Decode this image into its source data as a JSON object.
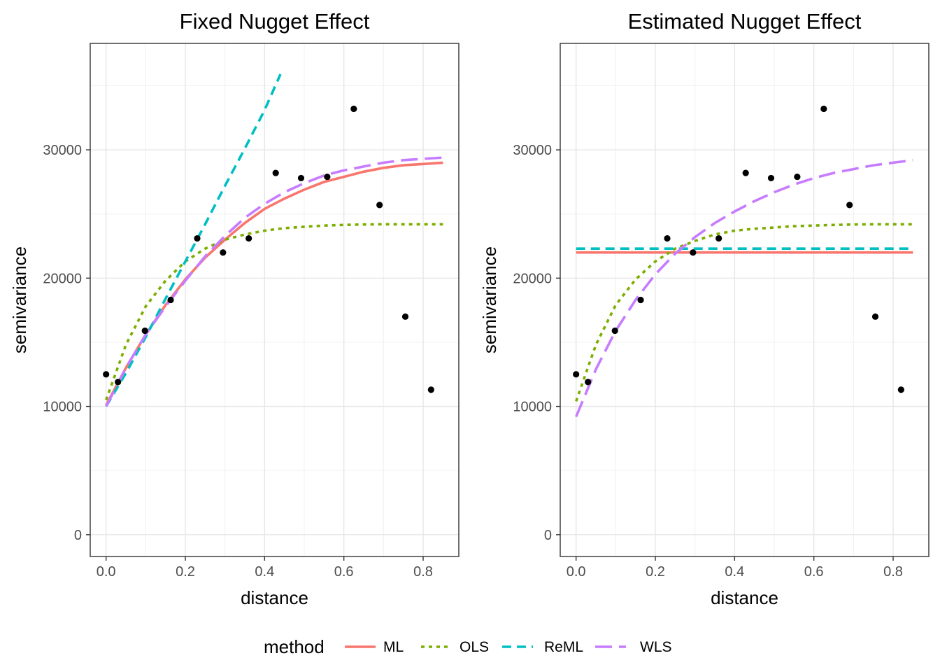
{
  "chart_data": [
    {
      "type": "line",
      "title": "Fixed Nugget Effect",
      "xlabel": "distance",
      "ylabel": "semivariance",
      "xlim": [
        -0.04,
        0.89
      ],
      "ylim": [
        -1700,
        38300
      ],
      "xticks": [
        0.0,
        0.2,
        0.4,
        0.6,
        0.8
      ],
      "xtick_labels": [
        "0.0",
        "0.2",
        "0.4",
        "0.6",
        "0.8"
      ],
      "yticks": [
        0,
        10000,
        20000,
        30000
      ],
      "ytick_labels": [
        "0",
        "10000",
        "20000",
        "30000"
      ],
      "grid": true,
      "points": {
        "x": [
          0.0,
          0.03,
          0.098,
          0.163,
          0.23,
          0.295,
          0.36,
          0.428,
          0.492,
          0.558,
          0.625,
          0.69,
          0.755,
          0.82
        ],
        "y": [
          12500,
          11900,
          15900,
          18300,
          23100,
          22000,
          23100,
          28200,
          27800,
          27900,
          33200,
          25700,
          17000,
          11300
        ]
      },
      "series": [
        {
          "name": "ML",
          "x": [
            0.0,
            0.05,
            0.1,
            0.15,
            0.2,
            0.25,
            0.3,
            0.35,
            0.4,
            0.45,
            0.5,
            0.55,
            0.6,
            0.65,
            0.7,
            0.75,
            0.8,
            0.85
          ],
          "y": [
            10100,
            13000,
            15600,
            17900,
            19900,
            21600,
            23000,
            24300,
            25400,
            26200,
            26900,
            27500,
            27900,
            28300,
            28600,
            28800,
            28900,
            29000
          ]
        },
        {
          "name": "OLS",
          "x": [
            0.0,
            0.05,
            0.1,
            0.15,
            0.2,
            0.25,
            0.3,
            0.35,
            0.4,
            0.45,
            0.5,
            0.55,
            0.6,
            0.65,
            0.7,
            0.75,
            0.8,
            0.85
          ],
          "y": [
            10500,
            14800,
            17800,
            19800,
            21300,
            22300,
            23000,
            23400,
            23700,
            23900,
            24000,
            24100,
            24150,
            24180,
            24200,
            24200,
            24200,
            24200
          ]
        },
        {
          "name": "ReML",
          "x": [
            0.0,
            0.05,
            0.1,
            0.15,
            0.2,
            0.25,
            0.3,
            0.35,
            0.4,
            0.44
          ],
          "y": [
            10000,
            12600,
            15400,
            18400,
            21300,
            24200,
            27200,
            30100,
            33100,
            35900
          ]
        },
        {
          "name": "WLS",
          "x": [
            0.0,
            0.05,
            0.1,
            0.15,
            0.2,
            0.25,
            0.3,
            0.35,
            0.4,
            0.45,
            0.5,
            0.55,
            0.6,
            0.65,
            0.7,
            0.75,
            0.8,
            0.85
          ],
          "y": [
            10000,
            13000,
            15600,
            17800,
            19800,
            21700,
            23300,
            24700,
            25800,
            26700,
            27400,
            28000,
            28400,
            28700,
            29000,
            29200,
            29300,
            29400
          ]
        }
      ]
    },
    {
      "type": "line",
      "title": "Estimated Nugget Effect",
      "xlabel": "distance",
      "ylabel": "semivariance",
      "xlim": [
        -0.04,
        0.89
      ],
      "ylim": [
        -1700,
        38300
      ],
      "xticks": [
        0.0,
        0.2,
        0.4,
        0.6,
        0.8
      ],
      "xtick_labels": [
        "0.0",
        "0.2",
        "0.4",
        "0.6",
        "0.8"
      ],
      "yticks": [
        0,
        10000,
        20000,
        30000
      ],
      "ytick_labels": [
        "0",
        "10000",
        "20000",
        "30000"
      ],
      "grid": true,
      "points": {
        "x": [
          0.0,
          0.03,
          0.098,
          0.163,
          0.23,
          0.295,
          0.36,
          0.428,
          0.492,
          0.558,
          0.625,
          0.69,
          0.755,
          0.82
        ],
        "y": [
          12500,
          11900,
          15900,
          18300,
          23100,
          22000,
          23100,
          28200,
          27800,
          27900,
          33200,
          25700,
          17000,
          11300
        ]
      },
      "series": [
        {
          "name": "ML",
          "x": [
            0.0,
            0.85
          ],
          "y": [
            22000,
            22000
          ]
        },
        {
          "name": "OLS",
          "x": [
            0.0,
            0.05,
            0.1,
            0.15,
            0.2,
            0.25,
            0.3,
            0.35,
            0.4,
            0.45,
            0.5,
            0.55,
            0.6,
            0.65,
            0.7,
            0.75,
            0.8,
            0.85
          ],
          "y": [
            10400,
            14800,
            17900,
            19900,
            21300,
            22300,
            22900,
            23400,
            23700,
            23850,
            23950,
            24050,
            24100,
            24150,
            24180,
            24200,
            24200,
            24200
          ]
        },
        {
          "name": "ReML",
          "x": [
            0.0,
            0.85
          ],
          "y": [
            22300,
            22300
          ]
        },
        {
          "name": "WLS",
          "x": [
            0.0,
            0.05,
            0.1,
            0.15,
            0.2,
            0.25,
            0.3,
            0.35,
            0.4,
            0.45,
            0.5,
            0.55,
            0.6,
            0.65,
            0.7,
            0.75,
            0.8,
            0.85
          ],
          "y": [
            9200,
            12900,
            15900,
            18300,
            20300,
            21900,
            23200,
            24300,
            25200,
            26000,
            26700,
            27300,
            27800,
            28200,
            28500,
            28800,
            29000,
            29200
          ]
        }
      ]
    }
  ],
  "legend": {
    "title": "method",
    "placement": "bottom",
    "entries": [
      {
        "name": "ML",
        "color": "#F8766D",
        "linetype": "solid"
      },
      {
        "name": "OLS",
        "color": "#7CAE00",
        "linetype": "dotted"
      },
      {
        "name": "ReML",
        "color": "#00BFC4",
        "linetype": "dashed"
      },
      {
        "name": "WLS",
        "color": "#C77CFF",
        "linetype": "longdash"
      }
    ]
  }
}
